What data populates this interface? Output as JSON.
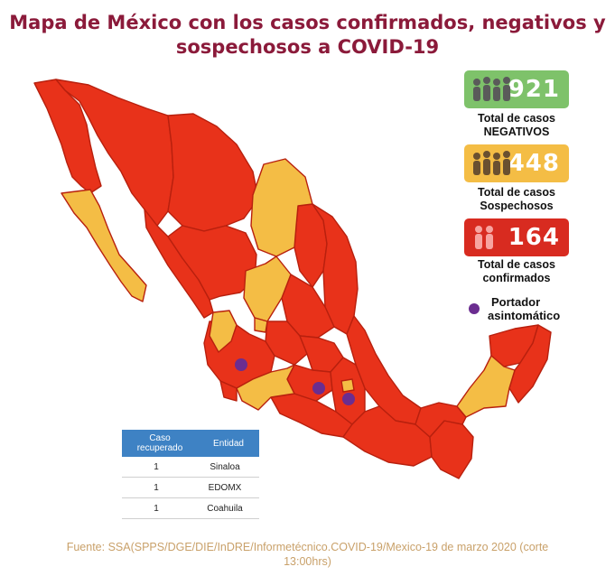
{
  "title": {
    "line1": "Mapa de México con los casos confirmados, negativos y",
    "line2": "sospechosos a COVID-19"
  },
  "colors": {
    "confirmed": "#e8321a",
    "suspected": "#f4bd45",
    "negative_badge": "#7ec26a",
    "asymptomatic": "#6b2d90",
    "title": "#8b1a3a",
    "table_header": "#3e82c4",
    "source": "#c9a16a"
  },
  "stats": {
    "negative": {
      "value": "921",
      "label_line1": "Total de casos",
      "label_line2": "NEGATIVOS",
      "icon": "people-group-icon"
    },
    "suspected": {
      "value": "448",
      "label_line1": "Total de casos",
      "label_line2": "Sospechosos",
      "icon": "people-group-icon"
    },
    "confirmed": {
      "value": "164",
      "label_line1": "Total de casos",
      "label_line2": "confirmados",
      "icon": "people-group-icon"
    }
  },
  "legend": {
    "asymptomatic_line1": "Portador",
    "asymptomatic_line2": "asintomático"
  },
  "recovered_table": {
    "headers": [
      "Caso recuperado",
      "Entidad"
    ],
    "rows": [
      [
        "1",
        "Sinaloa"
      ],
      [
        "1",
        "EDOMX"
      ],
      [
        "1",
        "Coahuila"
      ]
    ]
  },
  "source": {
    "line1": "Fuente: SSA(SPPS/DGE/DIE/InDRE/Informetécnico.COVID-19/Mexico-19 de marzo 2020 (corte",
    "line2": "13:00hrs)"
  },
  "map": {
    "legend_categories": [
      "confirmados",
      "Sospechosos"
    ],
    "states_suspected": [
      "Baja California Sur",
      "Coahuila",
      "Zacatecas",
      "Nayarit",
      "Aguascalientes",
      "Michoacán",
      "Tlaxcala",
      "Campeche"
    ],
    "asymptomatic_markers": [
      "Jalisco",
      "Estado de México",
      "Puebla"
    ]
  }
}
